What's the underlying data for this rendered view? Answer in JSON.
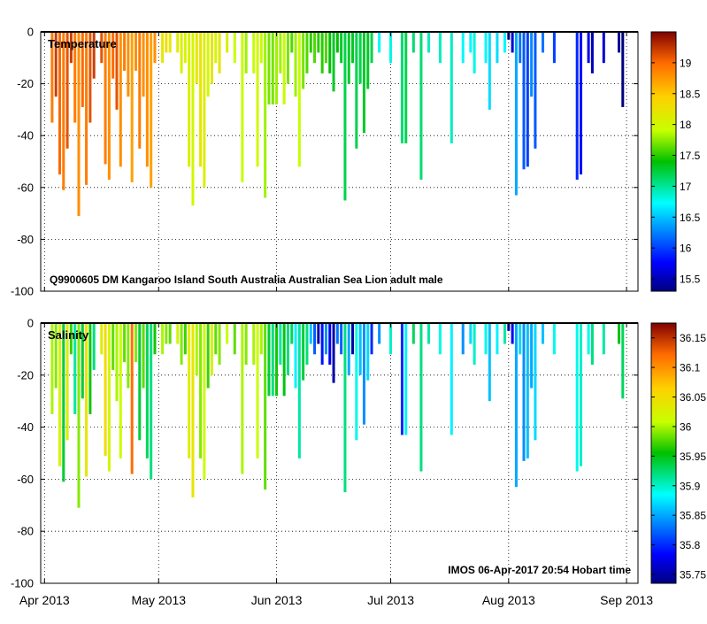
{
  "chart_data": [
    {
      "type": "profile-section",
      "title": "Temperature",
      "caption": "Q9900605 DM Kangaroo Island South Australia Australian Sea Lion adult male",
      "ylim": [
        -100,
        0
      ],
      "yticks": [
        0,
        -20,
        -40,
        -60,
        -80,
        -100
      ],
      "ytick_labels": [
        "0",
        "-20",
        "-40",
        "-60",
        "-80",
        "-100"
      ],
      "colorbar": {
        "range": [
          15.3,
          19.5
        ],
        "ticks": [
          15.5,
          16,
          16.5,
          17,
          17.5,
          18,
          18.5,
          19
        ],
        "tick_labels": [
          "15.5",
          "16",
          "16.5",
          "17",
          "17.5",
          "18",
          "18.5",
          "19"
        ]
      },
      "grid": true
    },
    {
      "type": "profile-section",
      "title": "Salinity",
      "footer": "IMOS 06-Apr-2017 20:54 Hobart time",
      "ylim": [
        -100,
        0
      ],
      "yticks": [
        0,
        -20,
        -40,
        -60,
        -80,
        -100
      ],
      "ytick_labels": [
        "0",
        "-20",
        "-40",
        "-60",
        "-80",
        "-100"
      ],
      "colorbar": {
        "range": [
          35.735,
          36.175
        ],
        "ticks": [
          35.75,
          35.8,
          35.85,
          35.9,
          35.95,
          36.0,
          36.05,
          36.1,
          36.15
        ],
        "tick_labels": [
          "35.75",
          "35.8",
          "35.85",
          "35.9",
          "35.95",
          "36",
          "36.05",
          "36.1",
          "36.15"
        ]
      },
      "grid": true
    }
  ],
  "x_axis": {
    "range": [
      -1,
      156
    ],
    "ticks": [
      0,
      30,
      61,
      91,
      122,
      153
    ],
    "tick_labels": [
      "Apr 2013",
      "May 2013",
      "Jun 2013",
      "Jul 2013",
      "Aug 2013",
      "Sep 2013"
    ]
  },
  "profiles": [
    {
      "day": 2,
      "depth": 35,
      "temp": 18.9,
      "sal": 36.0
    },
    {
      "day": 3,
      "depth": 25,
      "temp": 19.2,
      "sal": 35.99
    },
    {
      "day": 4,
      "depth": 55,
      "temp": 19.0,
      "sal": 36.02
    },
    {
      "day": 5,
      "depth": 61,
      "temp": 18.9,
      "sal": 35.94
    },
    {
      "day": 6,
      "depth": 45,
      "temp": 19.1,
      "sal": 36.03
    },
    {
      "day": 7,
      "depth": 12,
      "temp": 19.2,
      "sal": 35.97
    },
    {
      "day": 8,
      "depth": 35,
      "temp": 18.9,
      "sal": 35.91
    },
    {
      "day": 9,
      "depth": 71,
      "temp": 18.8,
      "sal": 35.99
    },
    {
      "day": 10,
      "depth": 29,
      "temp": 19.0,
      "sal": 35.94
    },
    {
      "day": 11,
      "depth": 59,
      "temp": 18.9,
      "sal": 36.04
    },
    {
      "day": 12,
      "depth": 35,
      "temp": 19.1,
      "sal": 35.96
    },
    {
      "day": 13,
      "depth": 18,
      "temp": 19.2,
      "sal": 35.92
    },
    {
      "day": 15,
      "depth": 12,
      "temp": 19.1,
      "sal": 36.03
    },
    {
      "day": 16,
      "depth": 51,
      "temp": 18.9,
      "sal": 36.05
    },
    {
      "day": 17,
      "depth": 57,
      "temp": 18.8,
      "sal": 36.02
    },
    {
      "day": 18,
      "depth": 18,
      "temp": 19.0,
      "sal": 35.98
    },
    {
      "day": 19,
      "depth": 30,
      "temp": 19.1,
      "sal": 36.0
    },
    {
      "day": 20,
      "depth": 52,
      "temp": 18.8,
      "sal": 36.01
    },
    {
      "day": 21,
      "depth": 15,
      "temp": 18.9,
      "sal": 35.98
    },
    {
      "day": 22,
      "depth": 25,
      "temp": 18.8,
      "sal": 35.99
    },
    {
      "day": 23,
      "depth": 58,
      "temp": 18.7,
      "sal": 36.12
    },
    {
      "day": 24,
      "depth": 15,
      "temp": 18.8,
      "sal": 35.99
    },
    {
      "day": 25,
      "depth": 45,
      "temp": 18.9,
      "sal": 35.94
    },
    {
      "day": 26,
      "depth": 25,
      "temp": 18.8,
      "sal": 35.98
    },
    {
      "day": 27,
      "depth": 52,
      "temp": 18.8,
      "sal": 35.93
    },
    {
      "day": 28,
      "depth": 60,
      "temp": 18.7,
      "sal": 35.92
    },
    {
      "day": 29,
      "depth": 12,
      "temp": 18.8,
      "sal": 35.96
    },
    {
      "day": 31,
      "depth": 12,
      "temp": 18.2,
      "sal": 36.0
    },
    {
      "day": 32,
      "depth": 8,
      "temp": 18.3,
      "sal": 35.99
    },
    {
      "day": 33,
      "depth": 8,
      "temp": 18.2,
      "sal": 35.98
    },
    {
      "day": 35,
      "depth": 8,
      "temp": 18.1,
      "sal": 36.02
    },
    {
      "day": 36,
      "depth": 16,
      "temp": 18.1,
      "sal": 35.99
    },
    {
      "day": 37,
      "depth": 12,
      "temp": 18.0,
      "sal": 35.97
    },
    {
      "day": 38,
      "depth": 52,
      "temp": 18.1,
      "sal": 36.03
    },
    {
      "day": 39,
      "depth": 67,
      "temp": 18.0,
      "sal": 36.04
    },
    {
      "day": 40,
      "depth": 20,
      "temp": 18.2,
      "sal": 36.0
    },
    {
      "day": 41,
      "depth": 52,
      "temp": 18.2,
      "sal": 35.99
    },
    {
      "day": 42,
      "depth": 60,
      "temp": 18.1,
      "sal": 36.01
    },
    {
      "day": 43,
      "depth": 25,
      "temp": 18.0,
      "sal": 35.97
    },
    {
      "day": 44,
      "depth": 20,
      "temp": 18.2,
      "sal": 36.02
    },
    {
      "day": 45,
      "depth": 12,
      "temp": 18.0,
      "sal": 35.98
    },
    {
      "day": 46,
      "depth": 16,
      "temp": 18.2,
      "sal": 35.99
    },
    {
      "day": 48,
      "depth": 8,
      "temp": 18.1,
      "sal": 36.01
    },
    {
      "day": 50,
      "depth": 12,
      "temp": 17.9,
      "sal": 35.98
    },
    {
      "day": 52,
      "depth": 58,
      "temp": 17.9,
      "sal": 36.0
    },
    {
      "day": 53,
      "depth": 16,
      "temp": 17.8,
      "sal": 35.99
    },
    {
      "day": 55,
      "depth": 16,
      "temp": 17.9,
      "sal": 36.0
    },
    {
      "day": 56,
      "depth": 52,
      "temp": 18.0,
      "sal": 36.01
    },
    {
      "day": 57,
      "depth": 12,
      "temp": 17.9,
      "sal": 36.0
    },
    {
      "day": 58,
      "depth": 64,
      "temp": 17.8,
      "sal": 35.98
    },
    {
      "day": 59,
      "depth": 28,
      "temp": 17.7,
      "sal": 35.94
    },
    {
      "day": 60,
      "depth": 28,
      "temp": 17.7,
      "sal": 35.92
    },
    {
      "day": 61,
      "depth": 28,
      "temp": 17.8,
      "sal": 35.96
    },
    {
      "day": 62,
      "depth": 16,
      "temp": 17.8,
      "sal": 35.91
    },
    {
      "day": 63,
      "depth": 28,
      "temp": 17.9,
      "sal": 35.95
    },
    {
      "day": 64,
      "depth": 20,
      "temp": 17.7,
      "sal": 35.92
    },
    {
      "day": 65,
      "depth": 8,
      "temp": 17.6,
      "sal": 35.93
    },
    {
      "day": 66,
      "depth": 25,
      "temp": 17.8,
      "sal": 35.88
    },
    {
      "day": 67,
      "depth": 52,
      "temp": 17.9,
      "sal": 35.91
    },
    {
      "day": 68,
      "depth": 22,
      "temp": 17.7,
      "sal": 35.94
    },
    {
      "day": 69,
      "depth": 16,
      "temp": 17.6,
      "sal": 35.92
    },
    {
      "day": 70,
      "depth": 8,
      "temp": 17.5,
      "sal": 35.86
    },
    {
      "day": 71,
      "depth": 12,
      "temp": 17.6,
      "sal": 35.82
    },
    {
      "day": 72,
      "depth": 8,
      "temp": 17.5,
      "sal": 35.75
    },
    {
      "day": 73,
      "depth": 16,
      "temp": 17.5,
      "sal": 35.79
    },
    {
      "day": 74,
      "depth": 12,
      "temp": 17.6,
      "sal": 35.84
    },
    {
      "day": 75,
      "depth": 16,
      "temp": 17.4,
      "sal": 35.78
    },
    {
      "day": 76,
      "depth": 23,
      "temp": 17.3,
      "sal": 35.75
    },
    {
      "day": 77,
      "depth": 8,
      "temp": 17.4,
      "sal": 35.83
    },
    {
      "day": 78,
      "depth": 12,
      "temp": 17.3,
      "sal": 35.82
    },
    {
      "day": 79,
      "depth": 65,
      "temp": 17.2,
      "sal": 35.92
    },
    {
      "day": 80,
      "depth": 20,
      "temp": 17.3,
      "sal": 35.85
    },
    {
      "day": 81,
      "depth": 12,
      "temp": 17.3,
      "sal": 35.75
    },
    {
      "day": 82,
      "depth": 45,
      "temp": 17.2,
      "sal": 35.89
    },
    {
      "day": 83,
      "depth": 20,
      "temp": 17.2,
      "sal": 35.86
    },
    {
      "day": 84,
      "depth": 39,
      "temp": 17.3,
      "sal": 35.84
    },
    {
      "day": 85,
      "depth": 22,
      "temp": 17.3,
      "sal": 35.87
    },
    {
      "day": 86,
      "depth": 12,
      "temp": 17.2,
      "sal": 35.8
    },
    {
      "day": 88,
      "depth": 8,
      "temp": 16.7,
      "sal": 35.84
    },
    {
      "day": 91,
      "depth": 12,
      "temp": 16.8,
      "sal": 35.9
    },
    {
      "day": 94,
      "depth": 43,
      "temp": 17.1,
      "sal": 35.8
    },
    {
      "day": 95,
      "depth": 43,
      "temp": 17.2,
      "sal": 35.88
    },
    {
      "day": 97,
      "depth": 8,
      "temp": 17.1,
      "sal": 35.93
    },
    {
      "day": 99,
      "depth": 57,
      "temp": 17.1,
      "sal": 35.92
    },
    {
      "day": 101,
      "depth": 8,
      "temp": 16.9,
      "sal": 35.91
    },
    {
      "day": 104,
      "depth": 12,
      "temp": 16.9,
      "sal": 35.89
    },
    {
      "day": 107,
      "depth": 43,
      "temp": 16.9,
      "sal": 35.88
    },
    {
      "day": 110,
      "depth": 12,
      "temp": 16.7,
      "sal": 35.84
    },
    {
      "day": 112,
      "depth": 8,
      "temp": 16.7,
      "sal": 35.87
    },
    {
      "day": 113,
      "depth": 16,
      "temp": 16.8,
      "sal": 35.9
    },
    {
      "day": 116,
      "depth": 12,
      "temp": 16.7,
      "sal": 35.89
    },
    {
      "day": 117,
      "depth": 30,
      "temp": 16.6,
      "sal": 35.86
    },
    {
      "day": 119,
      "depth": 12,
      "temp": 16.6,
      "sal": 35.88
    },
    {
      "day": 121,
      "depth": 8,
      "temp": 16.7,
      "sal": 35.91
    },
    {
      "day": 122,
      "depth": 3,
      "temp": 15.4,
      "sal": 35.76
    },
    {
      "day": 123,
      "depth": 8,
      "temp": 15.6,
      "sal": 35.78
    },
    {
      "day": 124,
      "depth": 63,
      "temp": 16.4,
      "sal": 35.85
    },
    {
      "day": 125,
      "depth": 12,
      "temp": 16.2,
      "sal": 35.87
    },
    {
      "day": 126,
      "depth": 53,
      "temp": 16.1,
      "sal": 35.84
    },
    {
      "day": 127,
      "depth": 52,
      "temp": 16.0,
      "sal": 35.86
    },
    {
      "day": 128,
      "depth": 25,
      "temp": 16.3,
      "sal": 35.85
    },
    {
      "day": 129,
      "depth": 45,
      "temp": 16.1,
      "sal": 35.87
    },
    {
      "day": 131,
      "depth": 8,
      "temp": 16.2,
      "sal": 35.86
    },
    {
      "day": 134,
      "depth": 12,
      "temp": 16.0,
      "sal": 35.89
    },
    {
      "day": 140,
      "depth": 57,
      "temp": 15.9,
      "sal": 35.89
    },
    {
      "day": 141,
      "depth": 55,
      "temp": 15.8,
      "sal": 35.9
    },
    {
      "day": 143,
      "depth": 12,
      "temp": 15.7,
      "sal": 35.89
    },
    {
      "day": 144,
      "depth": 16,
      "temp": 15.5,
      "sal": 35.92
    },
    {
      "day": 147,
      "depth": 12,
      "temp": 15.6,
      "sal": 35.91
    },
    {
      "day": 151,
      "depth": 8,
      "temp": 15.4,
      "sal": 35.95
    },
    {
      "day": 152,
      "depth": 29,
      "temp": 15.3,
      "sal": 35.93
    }
  ]
}
